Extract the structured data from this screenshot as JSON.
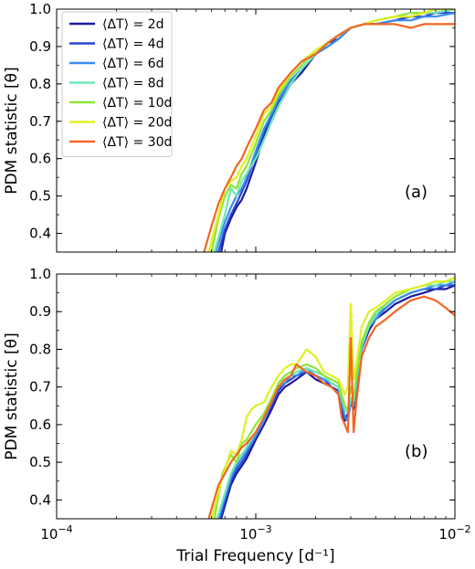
{
  "chart_data": [
    {
      "type": "line",
      "panel_label": "(a)",
      "ylabel": "PDM statistic [θ]",
      "xlabel": "",
      "xscale": "log",
      "xlim": [
        0.0001,
        0.01
      ],
      "ylim": [
        0.35,
        1.0
      ],
      "yticks": [
        "0.4",
        "0.5",
        "0.6",
        "0.7",
        "0.8",
        "0.9",
        "1.0"
      ],
      "xtick_labels_visible": false,
      "legend": "top-left",
      "series": [
        {
          "name": "⟨ΔT⟩ = 2d",
          "color": "#1a1a9e",
          "x": [
            0.00067,
            0.0007,
            0.00075,
            0.0008,
            0.00085,
            0.0009,
            0.001,
            0.0011,
            0.0012,
            0.0013,
            0.0015,
            0.0017,
            0.002,
            0.0023,
            0.0026,
            0.003,
            0.0035,
            0.004,
            0.005,
            0.006,
            0.007,
            0.008,
            0.01
          ],
          "y": [
            0.35,
            0.4,
            0.44,
            0.47,
            0.49,
            0.52,
            0.59,
            0.66,
            0.7,
            0.74,
            0.8,
            0.83,
            0.88,
            0.91,
            0.92,
            0.95,
            0.96,
            0.96,
            0.97,
            0.98,
            0.99,
            0.99,
            1.0
          ]
        },
        {
          "name": "⟨ΔT⟩ = 4d",
          "color": "#2846d2",
          "x": [
            0.00065,
            0.0007,
            0.00075,
            0.0008,
            0.00085,
            0.0009,
            0.001,
            0.0011,
            0.0012,
            0.0013,
            0.0015,
            0.0017,
            0.002,
            0.0023,
            0.0026,
            0.003,
            0.0035,
            0.004,
            0.005,
            0.006,
            0.007,
            0.008,
            0.01
          ],
          "y": [
            0.35,
            0.41,
            0.45,
            0.48,
            0.51,
            0.54,
            0.61,
            0.67,
            0.71,
            0.75,
            0.8,
            0.84,
            0.88,
            0.9,
            0.92,
            0.95,
            0.96,
            0.96,
            0.97,
            0.98,
            0.98,
            0.99,
            0.99
          ]
        },
        {
          "name": "⟨ΔT⟩ = 6d",
          "color": "#3b8cf0",
          "x": [
            0.00063,
            0.0007,
            0.00075,
            0.0008,
            0.00085,
            0.0009,
            0.001,
            0.0011,
            0.0012,
            0.0013,
            0.0015,
            0.0017,
            0.002,
            0.0023,
            0.0026,
            0.003,
            0.0035,
            0.004,
            0.005,
            0.006,
            0.007,
            0.008,
            0.01
          ],
          "y": [
            0.35,
            0.43,
            0.47,
            0.5,
            0.52,
            0.55,
            0.62,
            0.68,
            0.72,
            0.76,
            0.81,
            0.84,
            0.88,
            0.9,
            0.92,
            0.95,
            0.96,
            0.96,
            0.97,
            0.97,
            0.98,
            0.98,
            0.99
          ]
        },
        {
          "name": "⟨ΔT⟩ = 8d",
          "color": "#6ee6b4",
          "x": [
            0.00062,
            0.0007,
            0.00075,
            0.0008,
            0.00085,
            0.0009,
            0.001,
            0.0011,
            0.0012,
            0.0013,
            0.0015,
            0.0017,
            0.002,
            0.0023,
            0.0026,
            0.003,
            0.0035,
            0.004,
            0.005,
            0.006,
            0.007,
            0.008,
            0.01
          ],
          "y": [
            0.35,
            0.45,
            0.52,
            0.5,
            0.54,
            0.56,
            0.6,
            0.65,
            0.7,
            0.74,
            0.8,
            0.84,
            0.88,
            0.91,
            0.93,
            0.95,
            0.96,
            0.97,
            0.98,
            0.98,
            0.99,
            0.99,
            1.0
          ]
        },
        {
          "name": "⟨ΔT⟩ = 10d",
          "color": "#8be634",
          "x": [
            0.0006,
            0.00065,
            0.0007,
            0.00075,
            0.0008,
            0.00085,
            0.0009,
            0.001,
            0.0011,
            0.0012,
            0.0013,
            0.0015,
            0.0017,
            0.002,
            0.0023,
            0.0026,
            0.003,
            0.0035,
            0.004,
            0.005,
            0.006,
            0.007,
            0.008,
            0.01
          ],
          "y": [
            0.35,
            0.44,
            0.5,
            0.53,
            0.52,
            0.56,
            0.58,
            0.64,
            0.7,
            0.73,
            0.77,
            0.82,
            0.85,
            0.89,
            0.91,
            0.93,
            0.95,
            0.96,
            0.97,
            0.98,
            0.99,
            0.99,
            1.0,
            1.0
          ]
        },
        {
          "name": "⟨ΔT⟩ = 20d",
          "color": "#e0f020",
          "x": [
            0.00058,
            0.00065,
            0.0007,
            0.00075,
            0.0008,
            0.00085,
            0.0009,
            0.001,
            0.0011,
            0.0012,
            0.0013,
            0.0015,
            0.0017,
            0.002,
            0.0023,
            0.0026,
            0.003,
            0.0035,
            0.004,
            0.005,
            0.006,
            0.007,
            0.008,
            0.01
          ],
          "y": [
            0.35,
            0.45,
            0.52,
            0.54,
            0.55,
            0.58,
            0.6,
            0.66,
            0.72,
            0.74,
            0.78,
            0.83,
            0.86,
            0.89,
            0.91,
            0.93,
            0.95,
            0.96,
            0.97,
            0.98,
            0.98,
            0.99,
            1.0,
            1.0
          ]
        },
        {
          "name": "⟨ΔT⟩ = 30d",
          "color": "#f26522",
          "x": [
            0.00055,
            0.0006,
            0.00065,
            0.0007,
            0.00075,
            0.0008,
            0.00085,
            0.0009,
            0.001,
            0.0011,
            0.0012,
            0.0013,
            0.0015,
            0.0017,
            0.002,
            0.0023,
            0.0026,
            0.003,
            0.0035,
            0.004,
            0.005,
            0.006,
            0.007,
            0.008,
            0.01
          ],
          "y": [
            0.35,
            0.42,
            0.48,
            0.52,
            0.55,
            0.58,
            0.6,
            0.63,
            0.68,
            0.73,
            0.75,
            0.79,
            0.83,
            0.86,
            0.88,
            0.91,
            0.93,
            0.95,
            0.96,
            0.96,
            0.96,
            0.95,
            0.96,
            0.96,
            0.96
          ]
        }
      ]
    },
    {
      "type": "line",
      "panel_label": "(b)",
      "ylabel": "PDM statistic [θ]",
      "xlabel": "Trial Frequency [d⁻¹]",
      "xscale": "log",
      "xlim": [
        0.0001,
        0.01
      ],
      "ylim": [
        0.35,
        1.0
      ],
      "yticks": [
        "0.4",
        "0.5",
        "0.6",
        "0.7",
        "0.8",
        "0.9",
        "1.0"
      ],
      "xticks": [
        0.0001,
        0.001,
        0.01
      ],
      "xtick_labels": [
        {
          "base": "10",
          "exp": "−4"
        },
        {
          "base": "10",
          "exp": "−3"
        },
        {
          "base": "10",
          "exp": "−2"
        }
      ],
      "series": [
        {
          "name": "⟨ΔT⟩ = 2d",
          "color": "#1a1a9e",
          "x": [
            0.00067,
            0.00075,
            0.0008,
            0.00085,
            0.0009,
            0.001,
            0.0011,
            0.0012,
            0.0013,
            0.0014,
            0.0015,
            0.0016,
            0.0018,
            0.002,
            0.0022,
            0.0024,
            0.0026,
            0.0027,
            0.0028,
            0.0029,
            0.003,
            0.0031,
            0.0032,
            0.0034,
            0.0037,
            0.004,
            0.0045,
            0.005,
            0.006,
            0.007,
            0.008,
            0.009,
            0.01
          ],
          "y": [
            0.35,
            0.44,
            0.47,
            0.49,
            0.51,
            0.56,
            0.6,
            0.64,
            0.68,
            0.7,
            0.71,
            0.72,
            0.74,
            0.72,
            0.71,
            0.7,
            0.69,
            0.64,
            0.61,
            0.63,
            0.66,
            0.64,
            0.7,
            0.8,
            0.85,
            0.88,
            0.9,
            0.92,
            0.94,
            0.95,
            0.96,
            0.96,
            0.97
          ]
        },
        {
          "name": "⟨ΔT⟩ = 4d",
          "color": "#2846d2",
          "x": [
            0.00066,
            0.00075,
            0.0008,
            0.00085,
            0.0009,
            0.001,
            0.0011,
            0.0012,
            0.0013,
            0.0014,
            0.0015,
            0.0016,
            0.0018,
            0.002,
            0.0022,
            0.0024,
            0.0026,
            0.0027,
            0.0028,
            0.0029,
            0.003,
            0.0031,
            0.0032,
            0.0034,
            0.0037,
            0.004,
            0.0045,
            0.005,
            0.006,
            0.007,
            0.008,
            0.009,
            0.01
          ],
          "y": [
            0.35,
            0.45,
            0.48,
            0.5,
            0.52,
            0.57,
            0.61,
            0.65,
            0.69,
            0.71,
            0.72,
            0.73,
            0.74,
            0.73,
            0.72,
            0.7,
            0.69,
            0.65,
            0.62,
            0.62,
            0.67,
            0.65,
            0.71,
            0.81,
            0.86,
            0.89,
            0.91,
            0.93,
            0.95,
            0.96,
            0.96,
            0.97,
            0.97
          ]
        },
        {
          "name": "⟨ΔT⟩ = 6d",
          "color": "#3b8cf0",
          "x": [
            0.00065,
            0.00075,
            0.0008,
            0.00085,
            0.0009,
            0.001,
            0.0011,
            0.0012,
            0.0013,
            0.0014,
            0.0015,
            0.0016,
            0.0018,
            0.002,
            0.0022,
            0.0024,
            0.0026,
            0.0027,
            0.0028,
            0.0029,
            0.003,
            0.0031,
            0.0032,
            0.0034,
            0.0037,
            0.004,
            0.0045,
            0.005,
            0.006,
            0.007,
            0.008,
            0.009,
            0.01
          ],
          "y": [
            0.35,
            0.46,
            0.49,
            0.51,
            0.53,
            0.57,
            0.61,
            0.66,
            0.7,
            0.71,
            0.73,
            0.73,
            0.75,
            0.73,
            0.72,
            0.71,
            0.7,
            0.66,
            0.62,
            0.61,
            0.66,
            0.65,
            0.7,
            0.8,
            0.86,
            0.88,
            0.91,
            0.93,
            0.95,
            0.96,
            0.97,
            0.97,
            0.98
          ]
        },
        {
          "name": "⟨ΔT⟩ = 8d",
          "color": "#6ee6b4",
          "x": [
            0.00064,
            0.00075,
            0.0008,
            0.00085,
            0.0009,
            0.001,
            0.0011,
            0.0012,
            0.0013,
            0.0014,
            0.0015,
            0.0016,
            0.0018,
            0.002,
            0.0022,
            0.0024,
            0.0026,
            0.0027,
            0.0028,
            0.0029,
            0.003,
            0.0031,
            0.0032,
            0.0034,
            0.0037,
            0.004,
            0.0045,
            0.005,
            0.006,
            0.007,
            0.008,
            0.009,
            0.01
          ],
          "y": [
            0.35,
            0.47,
            0.5,
            0.52,
            0.54,
            0.58,
            0.62,
            0.66,
            0.7,
            0.72,
            0.73,
            0.74,
            0.75,
            0.74,
            0.73,
            0.71,
            0.7,
            0.67,
            0.64,
            0.63,
            0.67,
            0.66,
            0.72,
            0.81,
            0.86,
            0.89,
            0.92,
            0.94,
            0.96,
            0.97,
            0.97,
            0.98,
            0.98
          ]
        },
        {
          "name": "⟨ΔT⟩ = 10d",
          "color": "#8be634",
          "x": [
            0.00062,
            0.00068,
            0.00075,
            0.0008,
            0.00085,
            0.0009,
            0.001,
            0.0011,
            0.0012,
            0.0013,
            0.0014,
            0.0015,
            0.0016,
            0.0018,
            0.002,
            0.0022,
            0.0024,
            0.0026,
            0.0027,
            0.0028,
            0.0029,
            0.003,
            0.0031,
            0.0032,
            0.0034,
            0.0037,
            0.004,
            0.0045,
            0.005,
            0.006,
            0.007,
            0.008,
            0.009,
            0.01
          ],
          "y": [
            0.35,
            0.47,
            0.52,
            0.5,
            0.55,
            0.56,
            0.6,
            0.63,
            0.67,
            0.71,
            0.73,
            0.74,
            0.75,
            0.76,
            0.75,
            0.73,
            0.72,
            0.71,
            0.68,
            0.65,
            0.64,
            0.7,
            0.67,
            0.73,
            0.82,
            0.87,
            0.9,
            0.92,
            0.94,
            0.96,
            0.97,
            0.98,
            0.98,
            0.99
          ]
        },
        {
          "name": "⟨ΔT⟩ = 20d",
          "color": "#e0f020",
          "x": [
            0.0006,
            0.00068,
            0.00075,
            0.0008,
            0.00085,
            0.0009,
            0.00095,
            0.001,
            0.0011,
            0.0012,
            0.0013,
            0.0014,
            0.0015,
            0.0016,
            0.0018,
            0.002,
            0.0022,
            0.0024,
            0.0026,
            0.0027,
            0.0028,
            0.0029,
            0.003,
            0.0031,
            0.0032,
            0.0034,
            0.0037,
            0.004,
            0.0045,
            0.005,
            0.006,
            0.007,
            0.008,
            0.009,
            0.01
          ],
          "y": [
            0.35,
            0.46,
            0.53,
            0.52,
            0.56,
            0.62,
            0.64,
            0.65,
            0.66,
            0.7,
            0.73,
            0.75,
            0.76,
            0.76,
            0.8,
            0.78,
            0.74,
            0.73,
            0.72,
            0.7,
            0.68,
            0.7,
            0.92,
            0.72,
            0.76,
            0.86,
            0.9,
            0.91,
            0.93,
            0.95,
            0.96,
            0.97,
            0.98,
            0.98,
            0.99
          ]
        },
        {
          "name": "⟨ΔT⟩ = 30d",
          "color": "#f26522",
          "x": [
            0.00058,
            0.00065,
            0.0007,
            0.00075,
            0.0008,
            0.00085,
            0.0009,
            0.001,
            0.0011,
            0.0012,
            0.0013,
            0.0014,
            0.0015,
            0.0016,
            0.0018,
            0.002,
            0.0022,
            0.0024,
            0.0026,
            0.0027,
            0.0028,
            0.0029,
            0.003,
            0.0031,
            0.0032,
            0.0034,
            0.0037,
            0.004,
            0.0045,
            0.005,
            0.006,
            0.007,
            0.008,
            0.009,
            0.01
          ],
          "y": [
            0.35,
            0.44,
            0.47,
            0.5,
            0.52,
            0.54,
            0.55,
            0.58,
            0.62,
            0.66,
            0.7,
            0.72,
            0.73,
            0.76,
            0.74,
            0.73,
            0.71,
            0.7,
            0.68,
            0.62,
            0.6,
            0.58,
            0.83,
            0.58,
            0.66,
            0.78,
            0.83,
            0.86,
            0.88,
            0.9,
            0.93,
            0.94,
            0.93,
            0.91,
            0.89
          ]
        }
      ]
    }
  ]
}
